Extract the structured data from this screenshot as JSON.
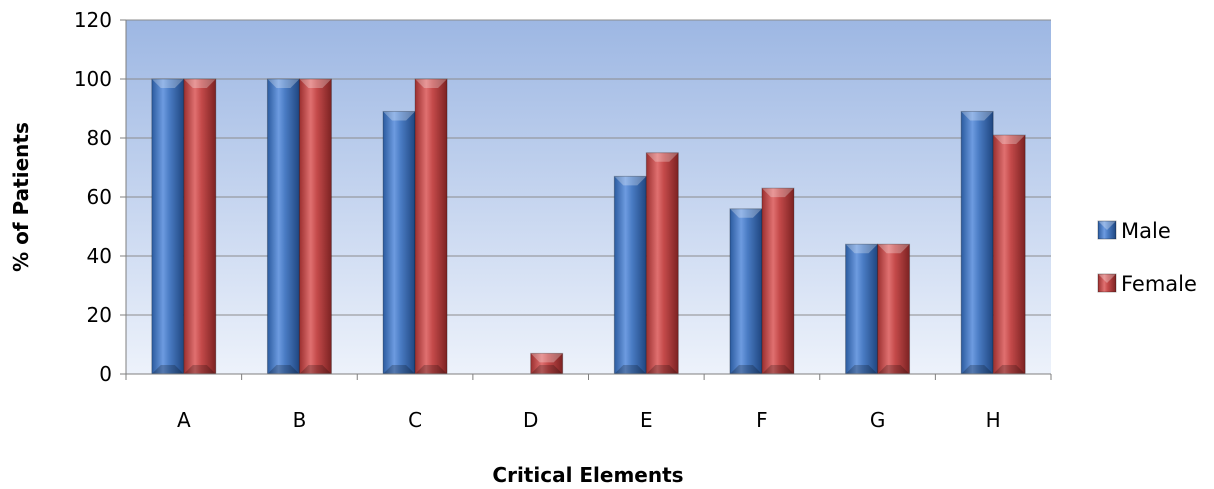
{
  "chart_data": {
    "type": "bar",
    "title": "",
    "xlabel": "Critical Elements",
    "ylabel": "% of Patients",
    "categories": [
      "A",
      "B",
      "C",
      "D",
      "E",
      "F",
      "G",
      "H"
    ],
    "series": [
      {
        "name": "Male",
        "values": [
          100,
          100,
          89,
          0,
          67,
          56,
          44,
          89
        ]
      },
      {
        "name": "Female",
        "values": [
          100,
          100,
          100,
          7,
          75,
          63,
          44,
          81
        ]
      }
    ],
    "ylim": [
      0,
      120
    ],
    "yticks": [
      0,
      20,
      40,
      60,
      80,
      100,
      120
    ],
    "grid": true,
    "legend_position": "right",
    "colors": {
      "Male": "#4a7cc4",
      "Female": "#c44a4a",
      "plot_top": "#9db7e3",
      "plot_bottom": "#edf2fb"
    }
  }
}
